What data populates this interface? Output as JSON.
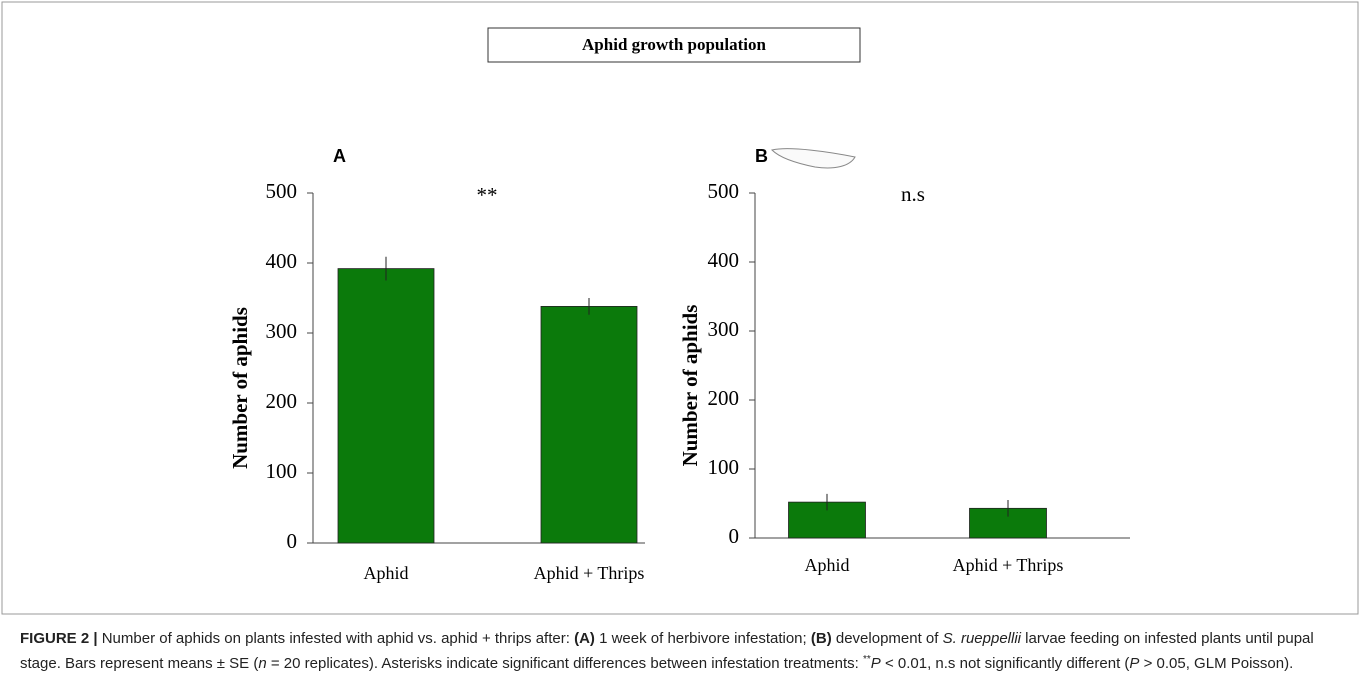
{
  "figure_title": "Aphid growth population",
  "chart_data": [
    {
      "type": "bar",
      "panel": "A",
      "annotation": "**",
      "y_label": "Number of aphids",
      "categories": [
        "Aphid",
        "Aphid + Thrips"
      ],
      "values": [
        392,
        338
      ],
      "errors": [
        17,
        12
      ],
      "color": "#0b7a0b",
      "ylim": [
        0,
        500
      ],
      "yticks": [
        0,
        100,
        200,
        300,
        400,
        500
      ]
    },
    {
      "type": "bar",
      "panel": "B",
      "annotation": "n.s",
      "y_label": "Number of aphids",
      "categories": [
        "Aphid",
        "Aphid + Thrips"
      ],
      "values": [
        52,
        43
      ],
      "errors": [
        12,
        12
      ],
      "color": "#0b7a0b",
      "ylim": [
        0,
        500
      ],
      "yticks": [
        0,
        100,
        200,
        300,
        400,
        500
      ]
    }
  ],
  "caption": [
    "FIGURE 2 |",
    " Number of aphids on plants infested with aphid vs. aphid + thrips after: ",
    "(A)",
    " 1 week of herbivore infestation; ",
    "(B)",
    " development of ",
    "S. rueppellii",
    " larvae feeding on infested plants until pupal stage. Bars represent means ± SE (",
    "n",
    " = 20 replicates). Asterisks indicate significant differences between infestation treatments: ",
    "**",
    "P",
    " < 0.01, n.s not significantly different (",
    "P",
    " > 0.05, GLM Poisson)."
  ]
}
